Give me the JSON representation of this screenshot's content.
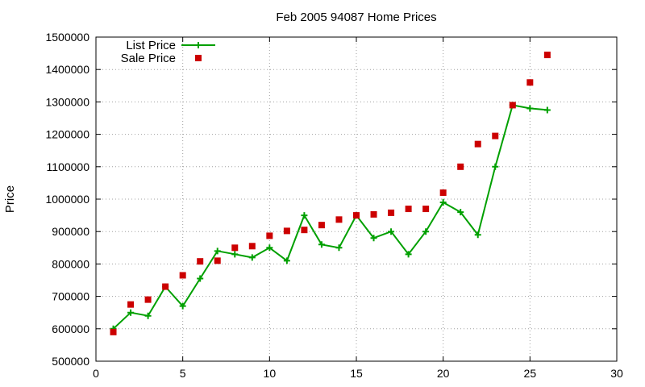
{
  "chart_data": {
    "type": "line",
    "title": "Feb 2005 94087 Home Prices",
    "xlabel": "",
    "ylabel": "Price",
    "xlim": [
      0,
      30
    ],
    "ylim": [
      500000,
      1500000
    ],
    "xticks": [
      "0",
      "5",
      "10",
      "15",
      "20",
      "25",
      "30"
    ],
    "yticks": [
      "500000",
      "600000",
      "700000",
      "800000",
      "900000",
      "1000000",
      "1100000",
      "1200000",
      "1300000",
      "1400000",
      "1500000"
    ],
    "grid": true,
    "legend_position": "top-left",
    "series": [
      {
        "name": "List Price",
        "style": "line-cross",
        "color": "#00a000",
        "x": [
          1,
          2,
          3,
          4,
          5,
          6,
          7,
          8,
          9,
          10,
          11,
          12,
          13,
          14,
          15,
          16,
          17,
          18,
          19,
          20,
          21,
          22,
          23,
          24,
          25,
          26
        ],
        "values": [
          600000,
          650000,
          640000,
          730000,
          670000,
          755000,
          840000,
          830000,
          820000,
          850000,
          810000,
          950000,
          860000,
          850000,
          950000,
          880000,
          900000,
          830000,
          900000,
          990000,
          960000,
          890000,
          1100000,
          1290000,
          1280000,
          1275000
        ]
      },
      {
        "name": "Sale Price",
        "style": "square",
        "color": "#cc0000",
        "x": [
          1,
          2,
          3,
          4,
          5,
          6,
          7,
          8,
          9,
          10,
          11,
          12,
          13,
          14,
          15,
          16,
          17,
          18,
          19,
          20,
          21,
          22,
          23,
          24,
          25,
          26
        ],
        "values": [
          590000,
          675000,
          690000,
          730000,
          765000,
          808000,
          810000,
          850000,
          855000,
          887000,
          902000,
          905000,
          920000,
          937000,
          950000,
          953000,
          958000,
          970000,
          970000,
          1020000,
          1100000,
          1170000,
          1195000,
          1290000,
          1360000,
          1445000
        ]
      }
    ]
  }
}
